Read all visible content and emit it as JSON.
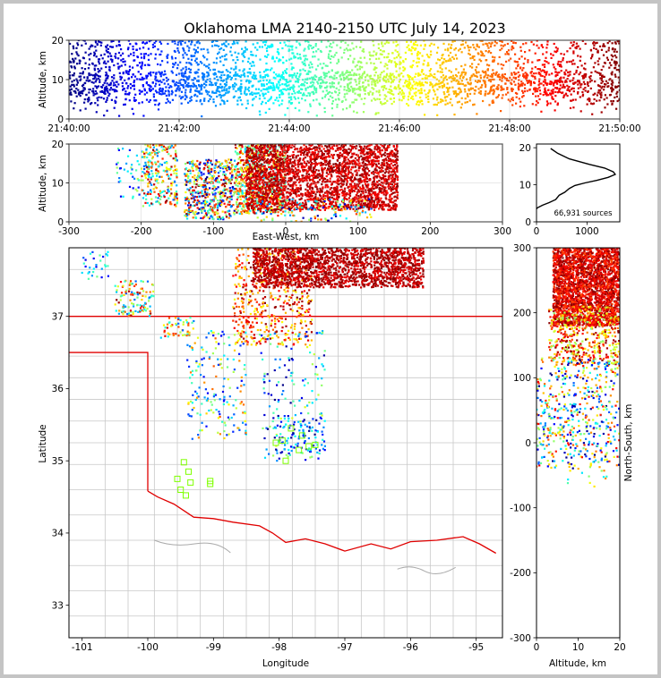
{
  "chart_data": [
    {
      "id": "time_height",
      "type": "scatter",
      "title": "Oklahoma LMA 2140-2150 UTC July 14, 2023",
      "xlabel": "",
      "ylabel": "Altitude, km",
      "x_ticks": [
        "21:40:00",
        "21:42:00",
        "21:44:00",
        "21:46:00",
        "21:48:00",
        "21:50:00"
      ],
      "x_range_minutes": [
        0,
        10
      ],
      "ylim": [
        0,
        20
      ],
      "y_ticks": [
        0,
        10,
        20
      ],
      "color_encoding": "time (jet colormap, blue = early, dark red = late)",
      "bands": [
        {
          "t": [
            0,
            10
          ],
          "alt": [
            3.5,
            20
          ],
          "density": 2200
        },
        {
          "t": [
            0,
            10
          ],
          "alt": [
            6,
            12
          ],
          "density": 900
        },
        {
          "t": [
            0,
            10
          ],
          "alt": [
            0.5,
            3.5
          ],
          "density": 60
        }
      ]
    },
    {
      "id": "ew_altitude",
      "type": "scatter",
      "xlabel": "East-West, km",
      "ylabel": "Altitude, km",
      "xlim": [
        -300,
        300
      ],
      "x_ticks": [
        -300,
        -200,
        -100,
        0,
        100,
        200,
        300
      ],
      "ylim": [
        0,
        20
      ],
      "y_ticks": [
        0,
        10,
        20
      ],
      "clusters": [
        {
          "x": [
            -235,
            -200
          ],
          "alt": [
            6,
            19
          ],
          "time": [
            0.1,
            0.6
          ],
          "n": 40
        },
        {
          "x": [
            -200,
            -150
          ],
          "alt": [
            4,
            20
          ],
          "time": [
            0.2,
            1.0
          ],
          "n": 260
        },
        {
          "x": [
            -140,
            -70
          ],
          "alt": [
            0.5,
            16
          ],
          "time": [
            0.0,
            1.0
          ],
          "n": 520
        },
        {
          "x": [
            -70,
            0
          ],
          "alt": [
            2,
            20
          ],
          "time": [
            0.3,
            1.0
          ],
          "n": 700
        },
        {
          "x": [
            -55,
            155
          ],
          "alt": [
            3,
            20
          ],
          "time": [
            0.85,
            1.0
          ],
          "n": 2600
        },
        {
          "x": [
            -40,
            120
          ],
          "alt": [
            0,
            6
          ],
          "time": [
            0.0,
            0.9
          ],
          "n": 140
        }
      ]
    },
    {
      "id": "alt_histogram",
      "type": "line",
      "xlim": [
        0,
        1650
      ],
      "x_ticks": [
        0,
        1000
      ],
      "ylim": [
        0,
        21
      ],
      "y_ticks": [
        0,
        10,
        20
      ],
      "annotation": "66,931 sources",
      "profile": [
        {
          "alt": 19.8,
          "count": 280
        },
        {
          "alt": 18.5,
          "count": 420
        },
        {
          "alt": 17.0,
          "count": 650
        },
        {
          "alt": 15.5,
          "count": 1050
        },
        {
          "alt": 14.5,
          "count": 1350
        },
        {
          "alt": 13.5,
          "count": 1520
        },
        {
          "alt": 12.8,
          "count": 1560
        },
        {
          "alt": 12.0,
          "count": 1420
        },
        {
          "alt": 11.2,
          "count": 1200
        },
        {
          "alt": 10.5,
          "count": 960
        },
        {
          "alt": 9.8,
          "count": 760
        },
        {
          "alt": 9.0,
          "count": 650
        },
        {
          "alt": 8.0,
          "count": 560
        },
        {
          "alt": 7.2,
          "count": 450
        },
        {
          "alt": 6.0,
          "count": 380
        },
        {
          "alt": 5.2,
          "count": 250
        },
        {
          "alt": 4.5,
          "count": 120
        },
        {
          "alt": 3.8,
          "count": 20
        },
        {
          "alt": 3.5,
          "count": 0
        }
      ]
    },
    {
      "id": "plan_view",
      "type": "scatter",
      "xlabel": "Longitude",
      "ylabel": "Latitude",
      "xlim": [
        -101.2,
        -94.6
      ],
      "x_ticks": [
        -101,
        -100,
        -99,
        -98,
        -97,
        -96,
        -95
      ],
      "ylim": [
        32.55,
        37.95
      ],
      "y_ticks": [
        33,
        34,
        35,
        36,
        37
      ],
      "clusters": [
        {
          "lon": [
            -101.0,
            -100.6
          ],
          "lat": [
            37.5,
            37.9
          ],
          "time": [
            0.1,
            0.5
          ],
          "n": 30
        },
        {
          "lon": [
            -100.5,
            -99.9
          ],
          "lat": [
            37.0,
            37.5
          ],
          "time": [
            0.2,
            1.0
          ],
          "n": 120
        },
        {
          "lon": [
            -99.8,
            -99.3
          ],
          "lat": [
            36.7,
            37.0
          ],
          "time": [
            0.2,
            0.9
          ],
          "n": 50
        },
        {
          "lon": [
            -99.4,
            -98.5
          ],
          "lat": [
            35.3,
            36.8
          ],
          "time": [
            0.1,
            0.8
          ],
          "n": 180
        },
        {
          "lon": [
            -98.7,
            -97.5
          ],
          "lat": [
            36.6,
            37.95
          ],
          "time": [
            0.6,
            1.0
          ],
          "n": 500
        },
        {
          "lon": [
            -98.4,
            -95.8
          ],
          "lat": [
            37.4,
            37.95
          ],
          "time": [
            0.88,
            1.0
          ],
          "n": 1800
        },
        {
          "lon": [
            -98.3,
            -97.3
          ],
          "lat": [
            35.0,
            36.8
          ],
          "time": [
            0.0,
            0.6
          ],
          "n": 160
        },
        {
          "lon": [
            -98.1,
            -97.3
          ],
          "lat": [
            35.1,
            35.6
          ],
          "time": [
            0.0,
            0.4
          ],
          "n": 90
        }
      ],
      "stations": [
        {
          "lon": -99.45,
          "lat": 34.98
        },
        {
          "lon": -99.38,
          "lat": 34.85
        },
        {
          "lon": -99.55,
          "lat": 34.75
        },
        {
          "lon": -99.35,
          "lat": 34.7
        },
        {
          "lon": -99.5,
          "lat": 34.6
        },
        {
          "lon": -99.42,
          "lat": 34.52
        },
        {
          "lon": -99.05,
          "lat": 34.72
        },
        {
          "lon": -99.05,
          "lat": 34.68
        },
        {
          "lon": -98.05,
          "lat": 35.25
        },
        {
          "lon": -97.95,
          "lat": 35.28
        },
        {
          "lon": -97.82,
          "lat": 35.45
        },
        {
          "lon": -97.9,
          "lat": 35.0
        },
        {
          "lon": -97.7,
          "lat": 35.15
        },
        {
          "lon": -97.55,
          "lat": 35.2
        },
        {
          "lon": -97.45,
          "lat": 35.22
        },
        {
          "lon": -97.65,
          "lat": 35.35
        }
      ]
    },
    {
      "id": "ns_altitude",
      "type": "scatter",
      "xlabel": "Altitude, km",
      "ylabel": "North-South, km",
      "xlim": [
        0,
        20
      ],
      "x_ticks": [
        0,
        10,
        20
      ],
      "ylim": [
        -300,
        300
      ],
      "y_ticks": [
        -300,
        -200,
        -100,
        0,
        100,
        200,
        300
      ],
      "clusters": [
        {
          "alt": [
            4,
            20
          ],
          "ns": [
            180,
            300
          ],
          "time": [
            0.8,
            1.0
          ],
          "n": 2400
        },
        {
          "alt": [
            3,
            20
          ],
          "ns": [
            120,
            210
          ],
          "time": [
            0.5,
            1.0
          ],
          "n": 500
        },
        {
          "alt": [
            0,
            20
          ],
          "ns": [
            -40,
            130
          ],
          "time": [
            0.0,
            0.9
          ],
          "n": 520
        },
        {
          "alt": [
            7,
            17
          ],
          "ns": [
            -70,
            -40
          ],
          "time": [
            0.3,
            0.9
          ],
          "n": 12
        }
      ]
    }
  ]
}
